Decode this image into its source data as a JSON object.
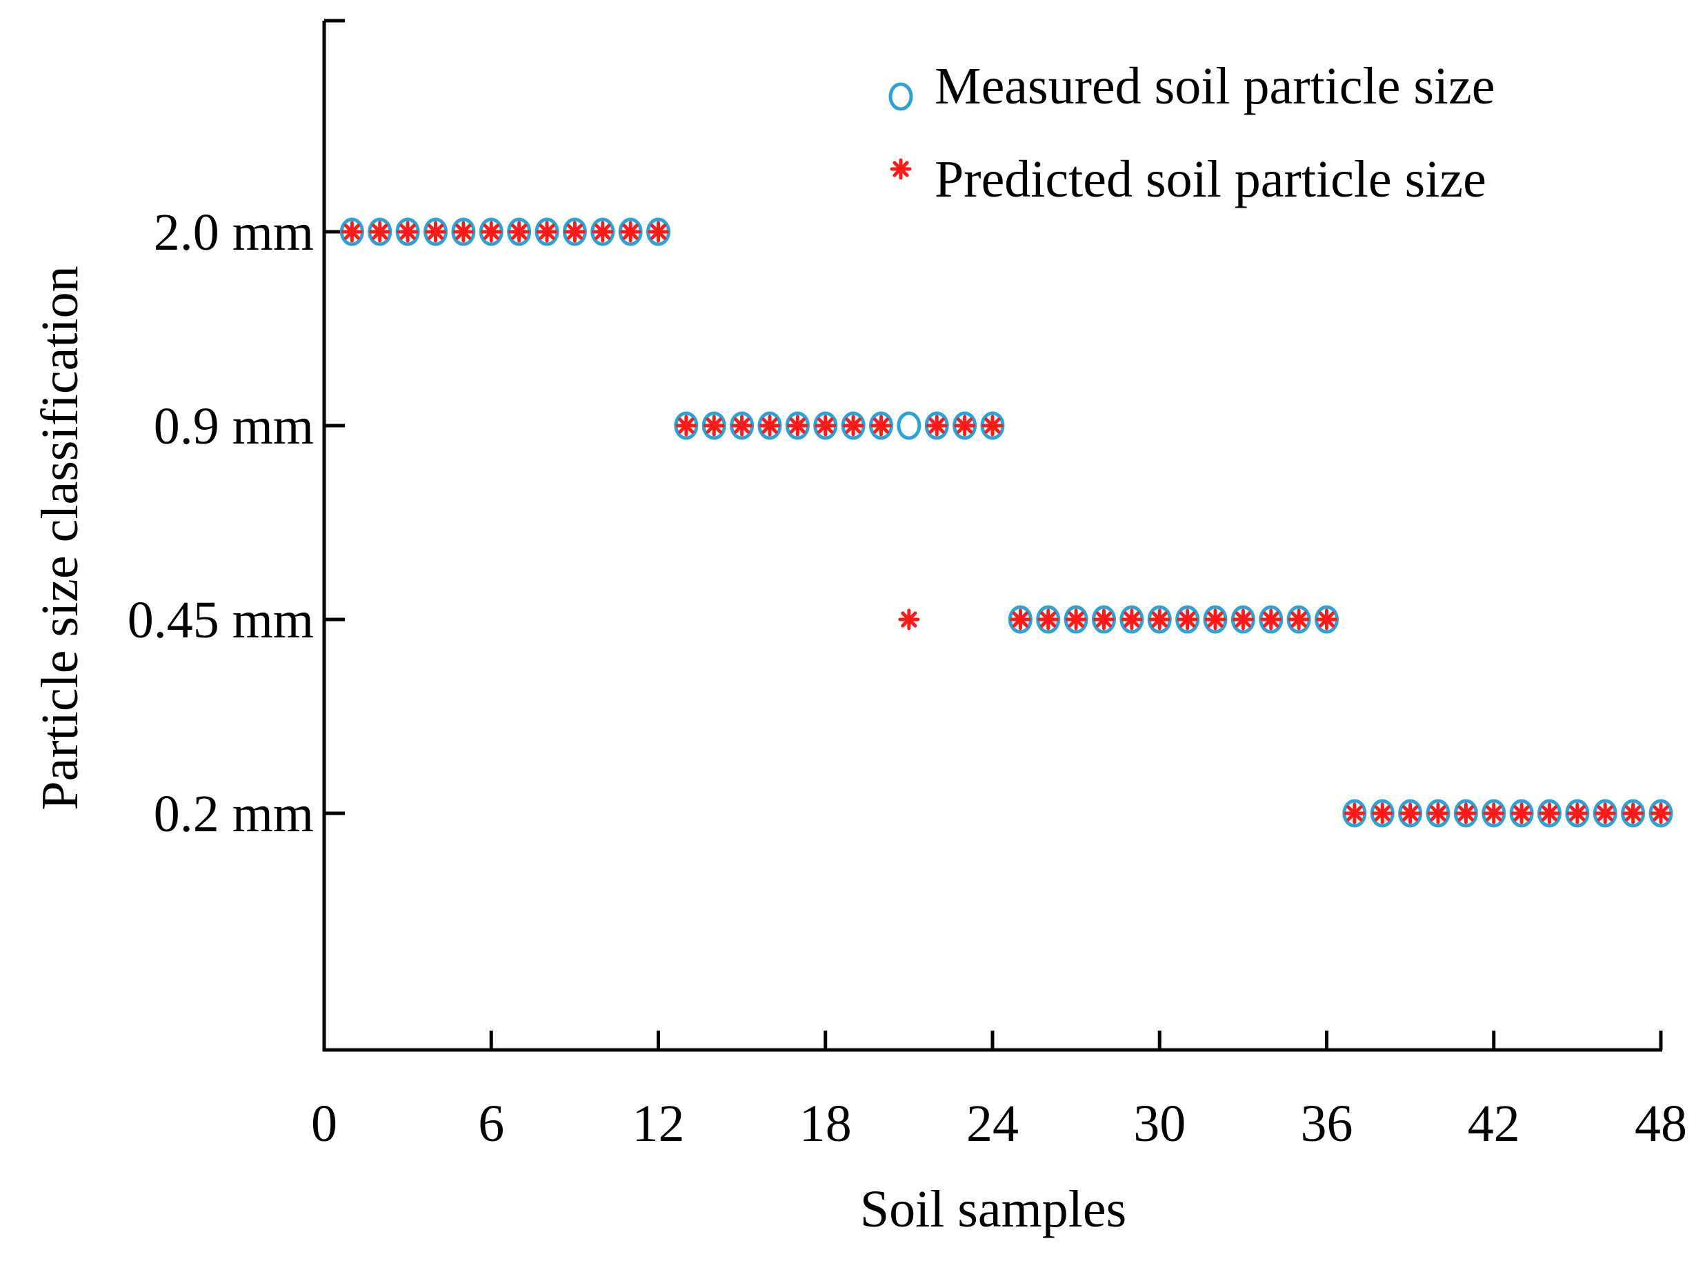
{
  "chart_data": {
    "type": "scatter",
    "title": "",
    "xlabel": "Soil samples",
    "ylabel": "Particle size classification",
    "xlim": [
      0,
      48
    ],
    "x_ticks": [
      0,
      6,
      12,
      18,
      24,
      30,
      36,
      42,
      48
    ],
    "y_categories": [
      "0.2 mm",
      "0.45 mm",
      "0.9 mm",
      "2.0 mm"
    ],
    "legend_position": "top-right",
    "series": [
      {
        "name": "Measured soil particle size",
        "marker": "circle-open",
        "color": "#29a3d8",
        "x": [
          1,
          2,
          3,
          4,
          5,
          6,
          7,
          8,
          9,
          10,
          11,
          12,
          13,
          14,
          15,
          16,
          17,
          18,
          19,
          20,
          21,
          22,
          23,
          24,
          25,
          26,
          27,
          28,
          29,
          30,
          31,
          32,
          33,
          34,
          35,
          36,
          37,
          38,
          39,
          40,
          41,
          42,
          43,
          44,
          45,
          46,
          47,
          48
        ],
        "y": [
          "2.0 mm",
          "2.0 mm",
          "2.0 mm",
          "2.0 mm",
          "2.0 mm",
          "2.0 mm",
          "2.0 mm",
          "2.0 mm",
          "2.0 mm",
          "2.0 mm",
          "2.0 mm",
          "2.0 mm",
          "0.9 mm",
          "0.9 mm",
          "0.9 mm",
          "0.9 mm",
          "0.9 mm",
          "0.9 mm",
          "0.9 mm",
          "0.9 mm",
          "0.9 mm",
          "0.9 mm",
          "0.9 mm",
          "0.9 mm",
          "0.45 mm",
          "0.45 mm",
          "0.45 mm",
          "0.45 mm",
          "0.45 mm",
          "0.45 mm",
          "0.45 mm",
          "0.45 mm",
          "0.45 mm",
          "0.45 mm",
          "0.45 mm",
          "0.45 mm",
          "0.2 mm",
          "0.2 mm",
          "0.2 mm",
          "0.2 mm",
          "0.2 mm",
          "0.2 mm",
          "0.2 mm",
          "0.2 mm",
          "0.2 mm",
          "0.2 mm",
          "0.2 mm",
          "0.2 mm"
        ]
      },
      {
        "name": "Predicted soil particle size",
        "marker": "star",
        "color": "#ff1a1a",
        "x": [
          1,
          2,
          3,
          4,
          5,
          6,
          7,
          8,
          9,
          10,
          11,
          12,
          13,
          14,
          15,
          16,
          17,
          18,
          19,
          20,
          21,
          22,
          23,
          24,
          25,
          26,
          27,
          28,
          29,
          30,
          31,
          32,
          33,
          34,
          35,
          36,
          37,
          38,
          39,
          40,
          41,
          42,
          43,
          44,
          45,
          46,
          47,
          48
        ],
        "y": [
          "2.0 mm",
          "2.0 mm",
          "2.0 mm",
          "2.0 mm",
          "2.0 mm",
          "2.0 mm",
          "2.0 mm",
          "2.0 mm",
          "2.0 mm",
          "2.0 mm",
          "2.0 mm",
          "2.0 mm",
          "0.9 mm",
          "0.9 mm",
          "0.9 mm",
          "0.9 mm",
          "0.9 mm",
          "0.9 mm",
          "0.9 mm",
          "0.9 mm",
          "0.45 mm",
          "0.9 mm",
          "0.9 mm",
          "0.9 mm",
          "0.45 mm",
          "0.45 mm",
          "0.45 mm",
          "0.45 mm",
          "0.45 mm",
          "0.45 mm",
          "0.45 mm",
          "0.45 mm",
          "0.45 mm",
          "0.45 mm",
          "0.45 mm",
          "0.45 mm",
          "0.2 mm",
          "0.2 mm",
          "0.2 mm",
          "0.2 mm",
          "0.2 mm",
          "0.2 mm",
          "0.2 mm",
          "0.2 mm",
          "0.2 mm",
          "0.2 mm",
          "0.2 mm",
          "0.2 mm"
        ]
      }
    ]
  }
}
